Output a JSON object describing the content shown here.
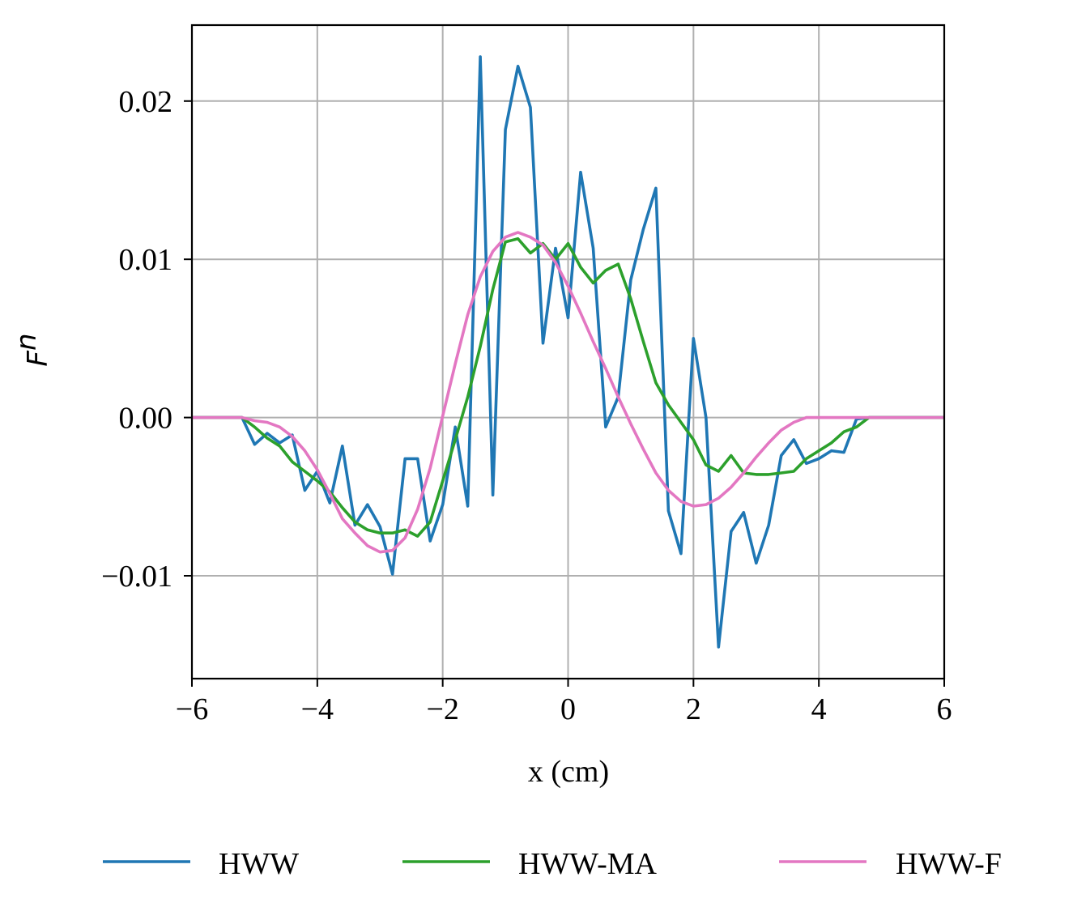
{
  "chart_data": {
    "type": "line",
    "title": "",
    "xlabel": "x (cm)",
    "ylabel": "F",
    "ylabel_superscript": "n",
    "xlim": [
      -6,
      6
    ],
    "ylim": [
      -0.0165,
      0.0248
    ],
    "xticks": [
      -6,
      -4,
      -2,
      0,
      2,
      4,
      6
    ],
    "xtick_labels": [
      "−6",
      "−4",
      "−2",
      "0",
      "2",
      "4",
      "6"
    ],
    "yticks": [
      -0.01,
      0.0,
      0.01,
      0.02
    ],
    "ytick_labels": [
      "−0.01",
      "0.00",
      "0.01",
      "0.02"
    ],
    "grid": true,
    "legend_placement": "bottom-center",
    "series": [
      {
        "name": "HWW",
        "color": "#1f77b4",
        "x": [
          -6.0,
          -5.2,
          -5.0,
          -4.8,
          -4.6,
          -4.4,
          -4.2,
          -4.0,
          -3.8,
          -3.6,
          -3.4,
          -3.2,
          -3.0,
          -2.8,
          -2.6,
          -2.4,
          -2.2,
          -2.0,
          -1.8,
          -1.6,
          -1.4,
          -1.2,
          -1.0,
          -0.8,
          -0.6,
          -0.4,
          -0.2,
          0.0,
          0.2,
          0.4,
          0.6,
          0.8,
          1.0,
          1.2,
          1.4,
          1.6,
          1.8,
          2.0,
          2.2,
          2.4,
          2.6,
          2.8,
          3.0,
          3.2,
          3.4,
          3.6,
          3.8,
          4.0,
          4.2,
          4.4,
          4.6,
          4.8,
          5.0,
          5.2,
          6.0
        ],
        "y": [
          0.0,
          0.0,
          -0.0017,
          -0.001,
          -0.0016,
          -0.0011,
          -0.0046,
          -0.0034,
          -0.0054,
          -0.0018,
          -0.0068,
          -0.0055,
          -0.0069,
          -0.0099,
          -0.0026,
          -0.0026,
          -0.0078,
          -0.0055,
          -0.0006,
          -0.0056,
          0.0228,
          -0.0049,
          0.0182,
          0.0222,
          0.0196,
          0.0047,
          0.0107,
          0.0063,
          0.0155,
          0.0107,
          -0.0006,
          0.0013,
          0.0087,
          0.0119,
          0.0145,
          -0.0059,
          -0.0086,
          0.005,
          0.0,
          -0.0145,
          -0.0072,
          -0.006,
          -0.0092,
          -0.0068,
          -0.0024,
          -0.0014,
          -0.0029,
          -0.0026,
          -0.0021,
          -0.0022,
          -0.0001,
          0.0,
          0.0,
          0.0,
          0.0
        ]
      },
      {
        "name": "HWW-MA",
        "color": "#2ca02c",
        "x": [
          -6.0,
          -5.2,
          -5.0,
          -4.8,
          -4.6,
          -4.4,
          -4.2,
          -4.0,
          -3.8,
          -3.6,
          -3.4,
          -3.2,
          -3.0,
          -2.8,
          -2.6,
          -2.4,
          -2.2,
          -2.0,
          -1.8,
          -1.6,
          -1.4,
          -1.2,
          -1.0,
          -0.8,
          -0.6,
          -0.4,
          -0.2,
          0.0,
          0.2,
          0.4,
          0.6,
          0.8,
          1.0,
          1.2,
          1.4,
          1.6,
          1.8,
          2.0,
          2.2,
          2.4,
          2.6,
          2.8,
          3.0,
          3.2,
          3.4,
          3.6,
          3.8,
          4.0,
          4.2,
          4.4,
          4.6,
          4.8,
          5.0,
          5.2,
          6.0
        ],
        "y": [
          0.0,
          0.0,
          -0.0006,
          -0.0013,
          -0.0018,
          -0.0028,
          -0.0034,
          -0.004,
          -0.0047,
          -0.0057,
          -0.0066,
          -0.0071,
          -0.0073,
          -0.0073,
          -0.0071,
          -0.0075,
          -0.0066,
          -0.004,
          -0.0014,
          0.0013,
          0.0045,
          0.0081,
          0.0111,
          0.0113,
          0.0104,
          0.011,
          0.01,
          0.011,
          0.0095,
          0.0085,
          0.0093,
          0.0097,
          0.0075,
          0.0048,
          0.0022,
          0.0008,
          -0.0003,
          -0.0014,
          -0.003,
          -0.0034,
          -0.0024,
          -0.0035,
          -0.0036,
          -0.0036,
          -0.0035,
          -0.0034,
          -0.0026,
          -0.0021,
          -0.0016,
          -0.0009,
          -0.0006,
          0.0,
          0.0,
          0.0,
          0.0
        ]
      },
      {
        "name": "HWW-F",
        "color": "#e377c2",
        "x": [
          -6.0,
          -5.2,
          -5.0,
          -4.8,
          -4.6,
          -4.4,
          -4.2,
          -4.0,
          -3.8,
          -3.6,
          -3.4,
          -3.2,
          -3.0,
          -2.8,
          -2.6,
          -2.4,
          -2.2,
          -2.0,
          -1.8,
          -1.6,
          -1.4,
          -1.2,
          -1.0,
          -0.8,
          -0.6,
          -0.4,
          -0.2,
          0.0,
          0.2,
          0.4,
          0.6,
          0.8,
          1.0,
          1.2,
          1.4,
          1.6,
          1.8,
          2.0,
          2.2,
          2.4,
          2.6,
          2.8,
          3.0,
          3.2,
          3.4,
          3.6,
          3.8,
          4.0,
          4.2,
          4.4,
          4.6,
          4.8,
          5.0,
          5.2,
          6.0
        ],
        "y": [
          0.0,
          0.0,
          -0.0002,
          -0.0003,
          -0.0006,
          -0.0012,
          -0.0021,
          -0.0033,
          -0.0048,
          -0.0064,
          -0.0073,
          -0.0081,
          -0.0085,
          -0.0084,
          -0.0076,
          -0.0058,
          -0.0032,
          0.0001,
          0.0034,
          0.0065,
          0.0089,
          0.0105,
          0.0114,
          0.0117,
          0.0114,
          0.0109,
          0.0098,
          0.0083,
          0.0066,
          0.0048,
          0.0031,
          0.0013,
          -0.0004,
          -0.002,
          -0.0035,
          -0.0046,
          -0.0053,
          -0.0056,
          -0.0055,
          -0.0051,
          -0.0044,
          -0.0035,
          -0.0025,
          -0.0016,
          -0.0008,
          -0.0003,
          0.0,
          0.0,
          0.0,
          0.0,
          0.0,
          0.0,
          0.0,
          0.0,
          0.0
        ]
      }
    ]
  }
}
